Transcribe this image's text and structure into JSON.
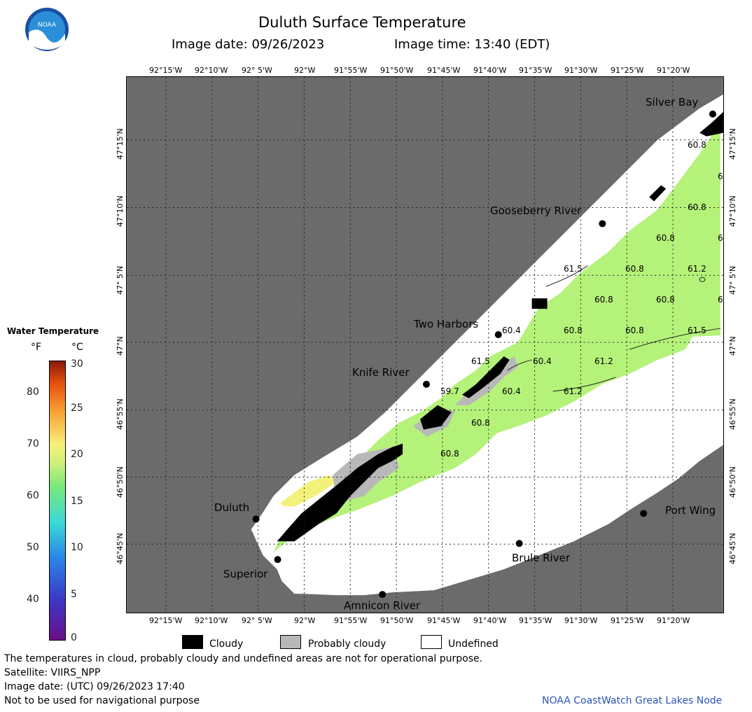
{
  "title": "Duluth Surface Temperature",
  "image_date_label": "Image date: 09/26/2023",
  "image_time_label": "Image time: 13:40 (EDT)",
  "logo_text": "NOAA",
  "colors": {
    "land": "#6b6b6b",
    "water_warm": "#b5f27a",
    "undefined": "#ffffff",
    "cloud": "#000000",
    "probably_cloudy": "#b8b8b8",
    "credit": "#2b54b8"
  },
  "lon_labels": [
    "92°15'W",
    "92°10'W",
    "92° 5'W",
    "92°W",
    "91°55'W",
    "91°50'W",
    "91°45'W",
    "91°40'W",
    "91°35'W",
    "91°30'W",
    "91°25'W",
    "91°20'W"
  ],
  "lat_labels": [
    "47°15'N",
    "47°10'N",
    "47° 5'N",
    "47°N",
    "46°55'N",
    "46°50'N",
    "46°45'N"
  ],
  "places": {
    "silver_bay": "Silver Bay",
    "gooseberry_river": "Gooseberry River",
    "two_harbors": "Two Harbors",
    "knife_river": "Knife River",
    "duluth": "Duluth",
    "superior": "Superior",
    "amnicon_river": "Amnicon River",
    "brule_river": "Brule River",
    "port_wing": "Port Wing"
  },
  "temp_values": [
    "60.8",
    "6",
    "60.8",
    "60.8",
    "6",
    "61.5",
    "60.8",
    "61.2",
    "60.8",
    "60.8",
    "6",
    "60.4",
    "60.8",
    "60.8",
    "61.5",
    "61.5",
    "60.4",
    "61.2",
    "59.7",
    "60.4",
    "61.2",
    "60.8",
    "60.8"
  ],
  "legend": {
    "title": "Water Temperature",
    "unit_f": "°F",
    "unit_c": "°C",
    "f_ticks": [
      "80",
      "70",
      "60",
      "50",
      "40"
    ],
    "c_ticks": [
      "30",
      "25",
      "20",
      "15",
      "10",
      "5",
      "0"
    ],
    "cloudy": "Cloudy",
    "probably_cloudy": "Probably cloudy",
    "undefined": "Undefined"
  },
  "footer": {
    "line1": "The temperatures in cloud, probably cloudy and undefined areas are not for operational purpose.",
    "line2": "Satellite: VIIRS_NPP",
    "line3": "Image date: (UTC) 09/26/2023  17:40",
    "line4": "Not to be used for navigational purpose",
    "credit": "NOAA CoastWatch Great Lakes Node"
  }
}
